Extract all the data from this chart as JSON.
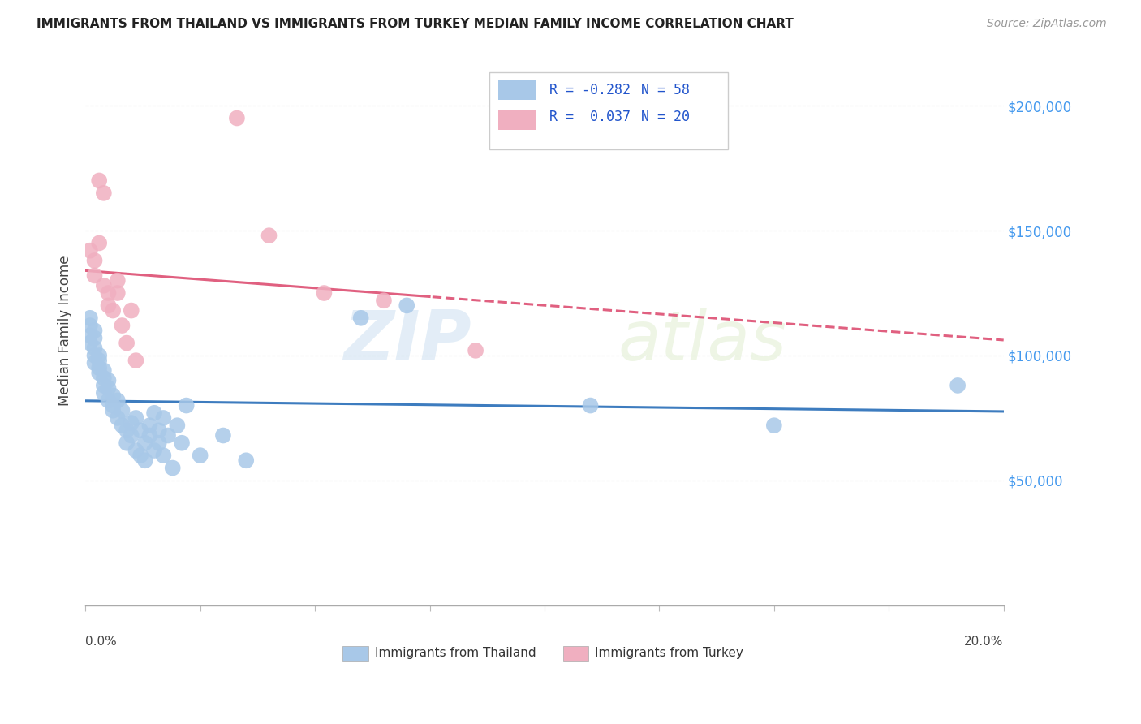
{
  "title": "IMMIGRANTS FROM THAILAND VS IMMIGRANTS FROM TURKEY MEDIAN FAMILY INCOME CORRELATION CHART",
  "source": "Source: ZipAtlas.com",
  "ylabel": "Median Family Income",
  "xlim": [
    0.0,
    0.2
  ],
  "ylim": [
    0,
    220000
  ],
  "yticks": [
    0,
    50000,
    100000,
    150000,
    200000
  ],
  "ytick_labels": [
    "",
    "$50,000",
    "$100,000",
    "$150,000",
    "$200,000"
  ],
  "background_color": "#ffffff",
  "watermark_zip": "ZIP",
  "watermark_atlas": "atlas",
  "thailand_color": "#a8c8e8",
  "turkey_color": "#f0afc0",
  "thailand_line_color": "#3d7cbf",
  "turkey_line_color": "#e06080",
  "legend_R_color": "#2255cc",
  "thailand_R": -0.282,
  "thailand_N": 58,
  "turkey_R": 0.037,
  "turkey_N": 20,
  "thailand_x": [
    0.001,
    0.001,
    0.001,
    0.001,
    0.002,
    0.002,
    0.002,
    0.002,
    0.002,
    0.003,
    0.003,
    0.003,
    0.003,
    0.004,
    0.004,
    0.004,
    0.004,
    0.005,
    0.005,
    0.005,
    0.006,
    0.006,
    0.006,
    0.007,
    0.007,
    0.008,
    0.008,
    0.009,
    0.009,
    0.01,
    0.01,
    0.011,
    0.011,
    0.012,
    0.012,
    0.013,
    0.013,
    0.014,
    0.014,
    0.015,
    0.015,
    0.016,
    0.016,
    0.017,
    0.017,
    0.018,
    0.019,
    0.02,
    0.021,
    0.022,
    0.025,
    0.03,
    0.035,
    0.06,
    0.07,
    0.11,
    0.15,
    0.19
  ],
  "thailand_y": [
    108000,
    105000,
    112000,
    115000,
    100000,
    103000,
    97000,
    107000,
    110000,
    95000,
    98000,
    93000,
    100000,
    88000,
    91000,
    85000,
    94000,
    82000,
    87000,
    90000,
    80000,
    84000,
    78000,
    75000,
    82000,
    72000,
    78000,
    70000,
    65000,
    73000,
    68000,
    62000,
    75000,
    60000,
    70000,
    65000,
    58000,
    72000,
    68000,
    62000,
    77000,
    70000,
    65000,
    60000,
    75000,
    68000,
    55000,
    72000,
    65000,
    80000,
    60000,
    68000,
    58000,
    115000,
    120000,
    80000,
    72000,
    88000
  ],
  "turkey_x": [
    0.001,
    0.002,
    0.002,
    0.003,
    0.003,
    0.004,
    0.004,
    0.005,
    0.005,
    0.006,
    0.007,
    0.007,
    0.008,
    0.009,
    0.01,
    0.011,
    0.04,
    0.052,
    0.065,
    0.085
  ],
  "turkey_y": [
    142000,
    138000,
    132000,
    145000,
    170000,
    128000,
    165000,
    120000,
    125000,
    118000,
    125000,
    130000,
    112000,
    105000,
    118000,
    98000,
    148000,
    125000,
    122000,
    102000
  ],
  "turkey_outlier_x": [
    0.033
  ],
  "turkey_outlier_y": [
    195000
  ]
}
